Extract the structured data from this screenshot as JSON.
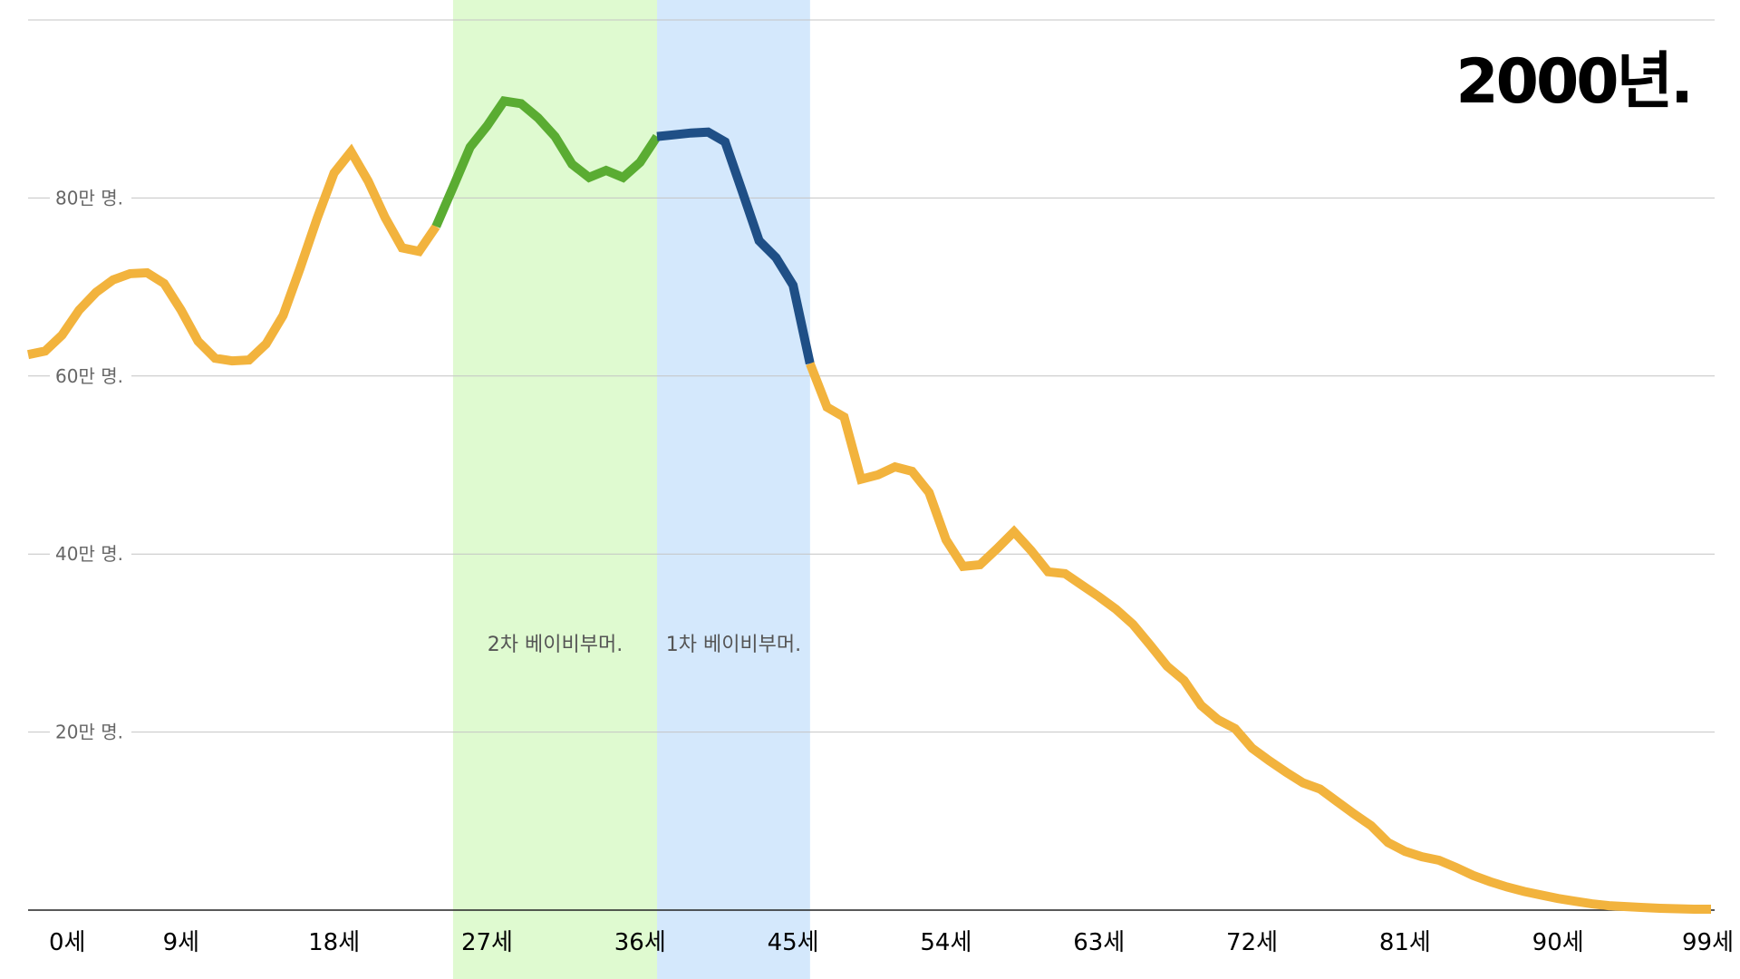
{
  "chart_data": {
    "type": "line",
    "title": "2000년.",
    "xlabel": "",
    "ylabel": "",
    "xlim": [
      0,
      99
    ],
    "ylim": [
      0,
      100
    ],
    "y_unit": "만 명",
    "grid": true,
    "x_ticks": [
      {
        "value": 0,
        "label": "0세"
      },
      {
        "value": 9,
        "label": "9세"
      },
      {
        "value": 18,
        "label": "18세"
      },
      {
        "value": 27,
        "label": "27세"
      },
      {
        "value": 36,
        "label": "36세"
      },
      {
        "value": 45,
        "label": "45세"
      },
      {
        "value": 54,
        "label": "54세"
      },
      {
        "value": 63,
        "label": "63세"
      },
      {
        "value": 72,
        "label": "72세"
      },
      {
        "value": 81,
        "label": "81세"
      },
      {
        "value": 90,
        "label": "90세"
      },
      {
        "value": 99,
        "label": "99세"
      }
    ],
    "y_ticks": [
      {
        "value": 20,
        "label": "20만 명."
      },
      {
        "value": 40,
        "label": "40만 명."
      },
      {
        "value": 60,
        "label": "60만 명."
      },
      {
        "value": 80,
        "label": "80만 명."
      },
      {
        "value": 100,
        "label": ""
      }
    ],
    "bands": [
      {
        "name": "2차 베이비부머.",
        "from": 25,
        "to": 37,
        "fill": "#dffad0",
        "line_color": "#5aac32"
      },
      {
        "name": "1차 베이비부머.",
        "from": 37,
        "to": 46,
        "fill": "#d4e8fc",
        "line_color": "#1f4f86"
      }
    ],
    "line_color": "#f2b33d",
    "x": [
      0,
      1,
      2,
      3,
      4,
      5,
      6,
      7,
      8,
      9,
      10,
      11,
      12,
      13,
      14,
      15,
      16,
      17,
      18,
      19,
      20,
      21,
      22,
      23,
      24,
      25,
      26,
      27,
      28,
      29,
      30,
      31,
      32,
      33,
      34,
      35,
      36,
      37,
      38,
      39,
      40,
      41,
      42,
      43,
      44,
      45,
      46,
      47,
      48,
      49,
      50,
      51,
      52,
      53,
      54,
      55,
      56,
      57,
      58,
      59,
      60,
      61,
      62,
      63,
      64,
      65,
      66,
      67,
      68,
      69,
      70,
      71,
      72,
      73,
      74,
      75,
      76,
      77,
      78,
      79,
      80,
      81,
      82,
      83,
      84,
      85,
      86,
      87,
      88,
      89,
      90,
      91,
      92,
      93,
      94,
      95,
      96,
      97,
      98,
      99
    ],
    "values": [
      62.4,
      62.8,
      64.6,
      67.4,
      69.4,
      70.8,
      71.5,
      71.6,
      70.4,
      67.4,
      63.9,
      62.0,
      61.7,
      61.8,
      63.6,
      66.8,
      72.1,
      77.7,
      82.8,
      85.2,
      81.9,
      77.8,
      74.4,
      74.0,
      76.8,
      81.2,
      85.7,
      88.1,
      90.9,
      90.6,
      89.0,
      86.9,
      83.8,
      82.3,
      83.1,
      82.3,
      84.0,
      86.9,
      87.1,
      87.3,
      87.4,
      86.3,
      80.8,
      75.2,
      73.3,
      70.2,
      61.4,
      56.5,
      55.4,
      48.4,
      48.9,
      49.8,
      49.3,
      46.9,
      41.6,
      38.6,
      38.8,
      40.6,
      42.5,
      40.4,
      38.0,
      37.8,
      36.5,
      35.2,
      33.8,
      32.1,
      29.8,
      27.4,
      25.8,
      23.0,
      21.4,
      20.4,
      18.2,
      16.8,
      15.5,
      14.3,
      13.6,
      12.2,
      10.8,
      9.5,
      7.6,
      6.6,
      6.0,
      5.6,
      4.8,
      3.9,
      3.2,
      2.6,
      2.1,
      1.7,
      1.3,
      1.0,
      0.7,
      0.5,
      0.4,
      0.3,
      0.2,
      0.15,
      0.1,
      0.1
    ]
  }
}
